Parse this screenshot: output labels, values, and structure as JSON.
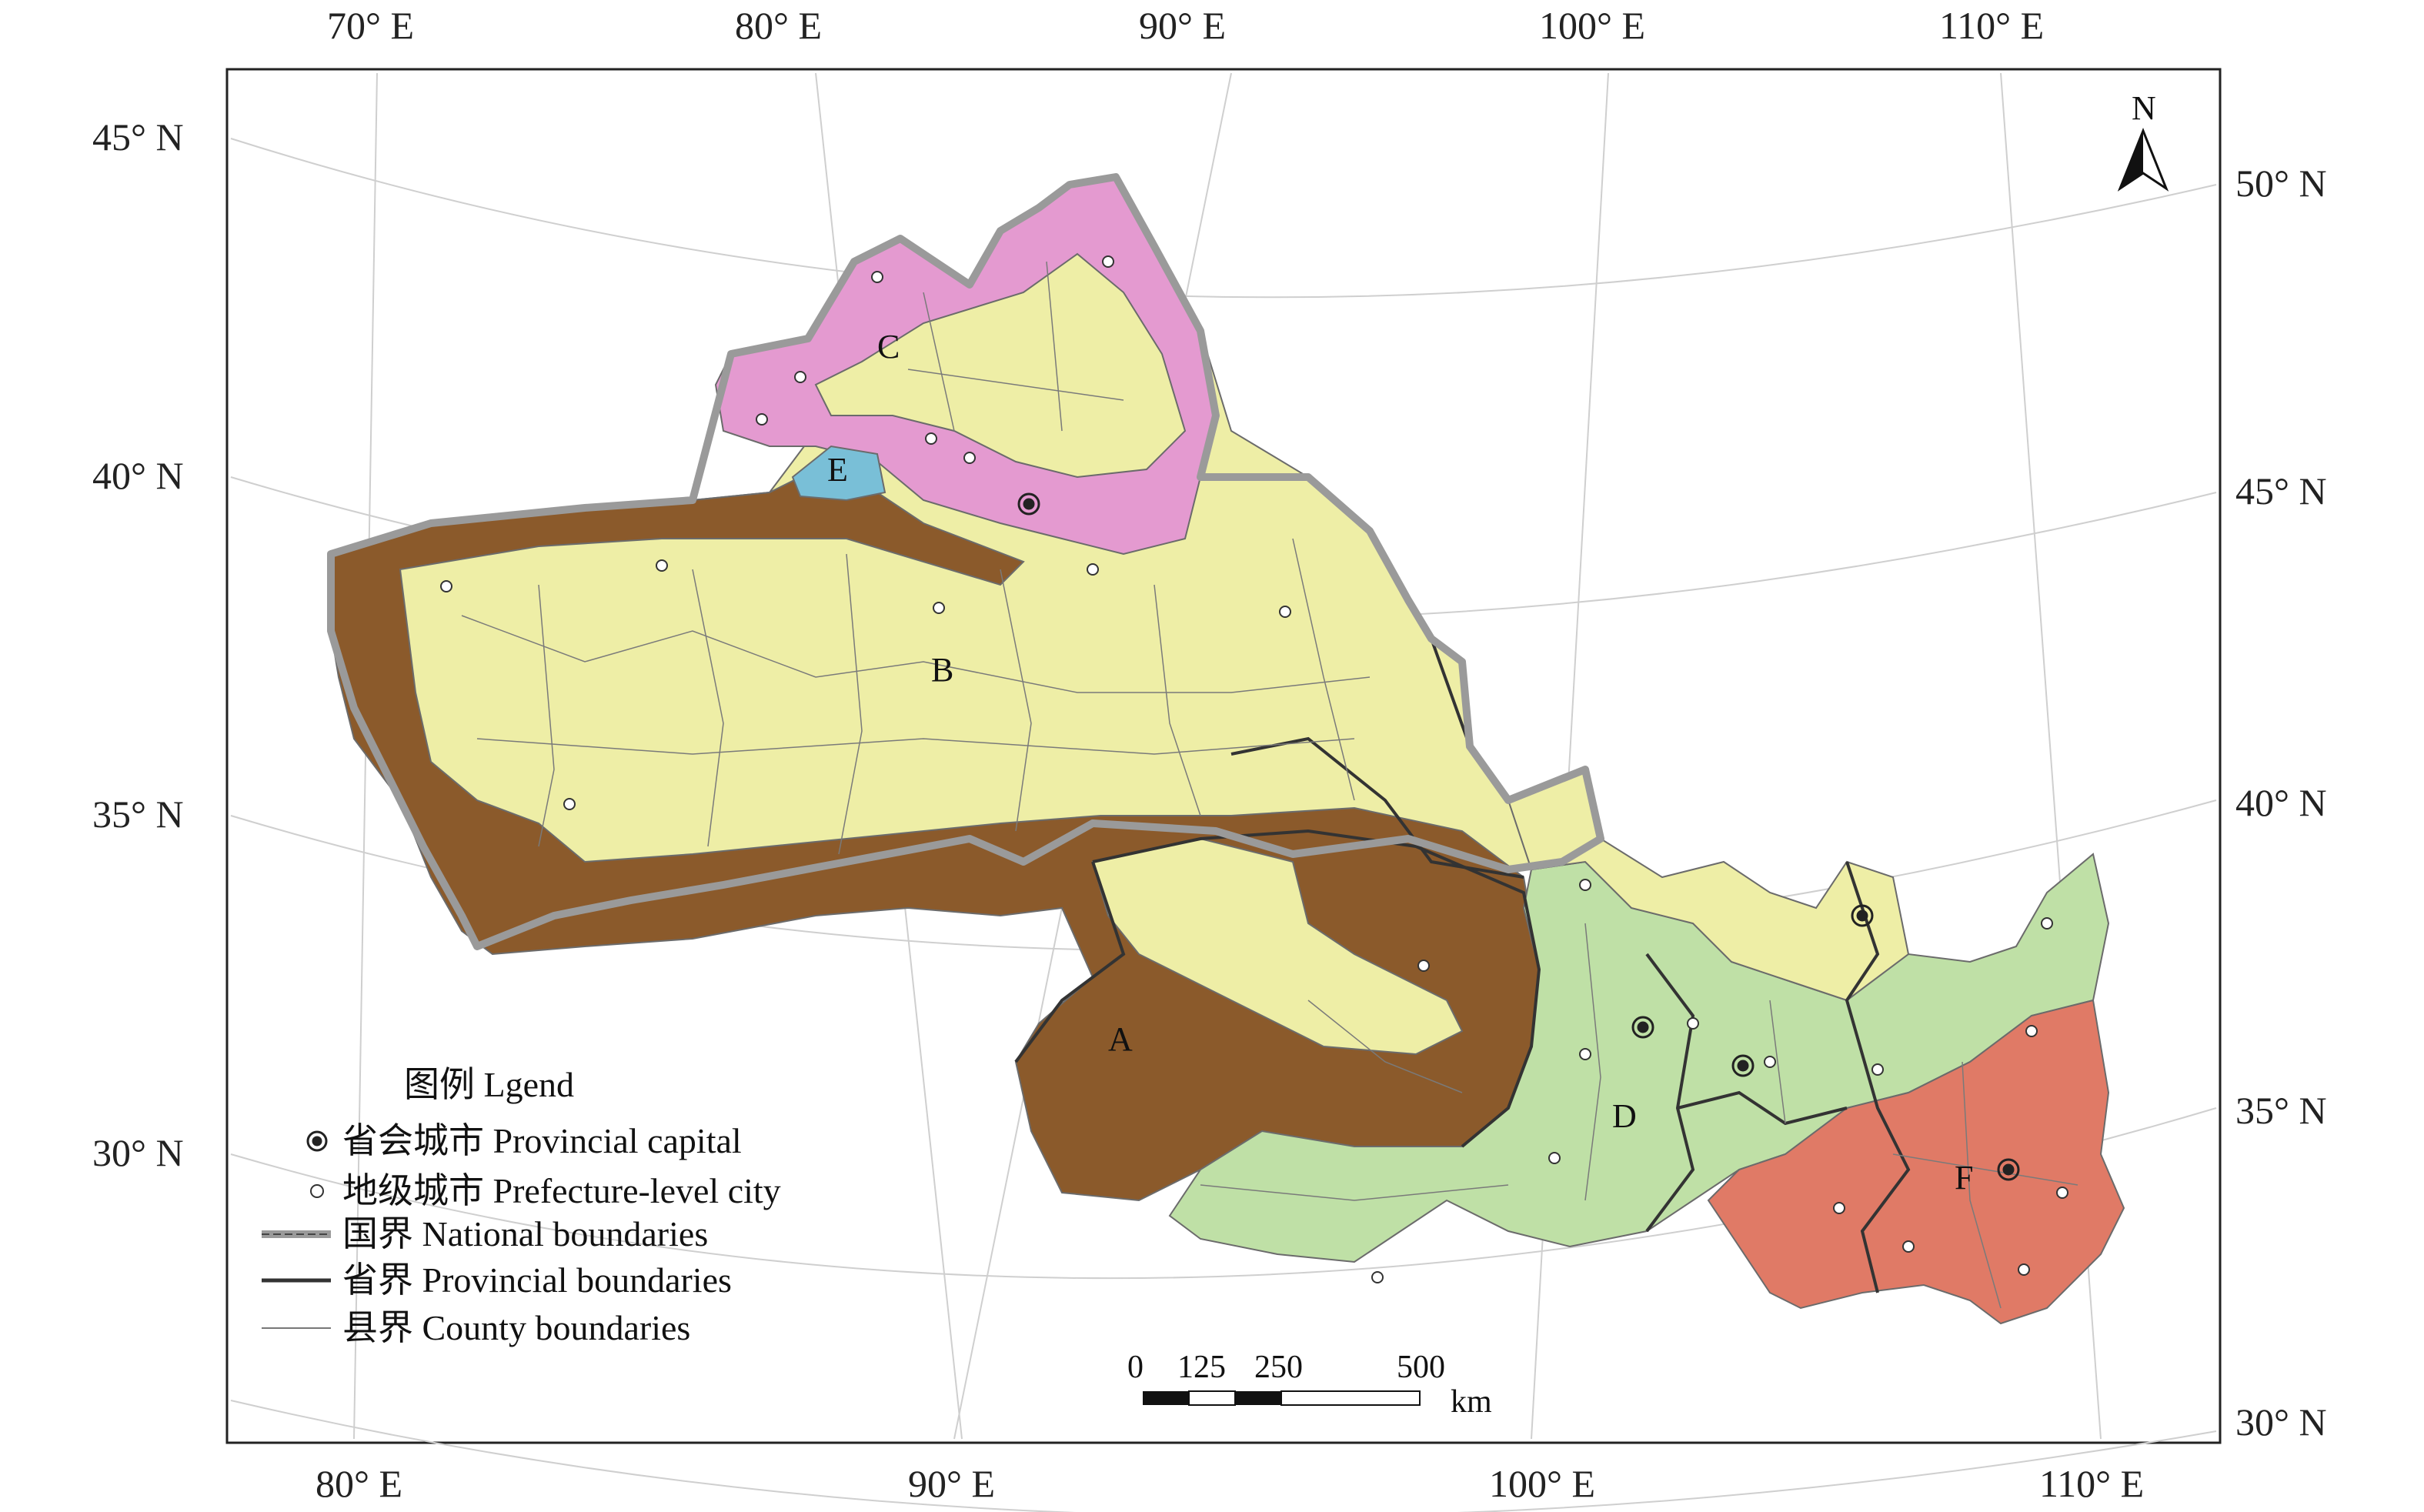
{
  "map": {
    "lon_labels_top": [
      "70° E",
      "80° E",
      "90° E",
      "100° E",
      "110° E"
    ],
    "lon_labels_bottom": [
      "80° E",
      "90° E",
      "100° E",
      "110° E"
    ],
    "lat_labels_left": [
      "45° N",
      "40° N",
      "35° N",
      "30° N"
    ],
    "lat_labels_right": [
      "50° N",
      "45° N",
      "40° N",
      "35° N",
      "30° N"
    ],
    "zones": [
      "A",
      "B",
      "C",
      "D",
      "E",
      "F"
    ],
    "north_label": "N",
    "zone_colors": {
      "A": "#8b5a2b",
      "B": "#eeeea6",
      "C": "#e49ad0",
      "D": "#bfe0a6",
      "E": "#79bfd7",
      "F": "#e07a66"
    },
    "national_border_color": "#9a9a9a"
  },
  "legend": {
    "title": "图例 Lgend",
    "items": [
      {
        "symbol": "provincial-capital",
        "label": "省会城市 Provincial capital"
      },
      {
        "symbol": "prefecture-city",
        "label": "地级城市 Prefecture-level city"
      },
      {
        "symbol": "national-boundary",
        "label": "国界 National boundaries"
      },
      {
        "symbol": "provincial-boundary",
        "label": "省界 Provincial boundaries"
      },
      {
        "symbol": "county-boundary",
        "label": "县界 County boundaries"
      }
    ]
  },
  "scale_bar": {
    "ticks": [
      "0",
      "125",
      "250",
      "500"
    ],
    "unit": "km"
  }
}
